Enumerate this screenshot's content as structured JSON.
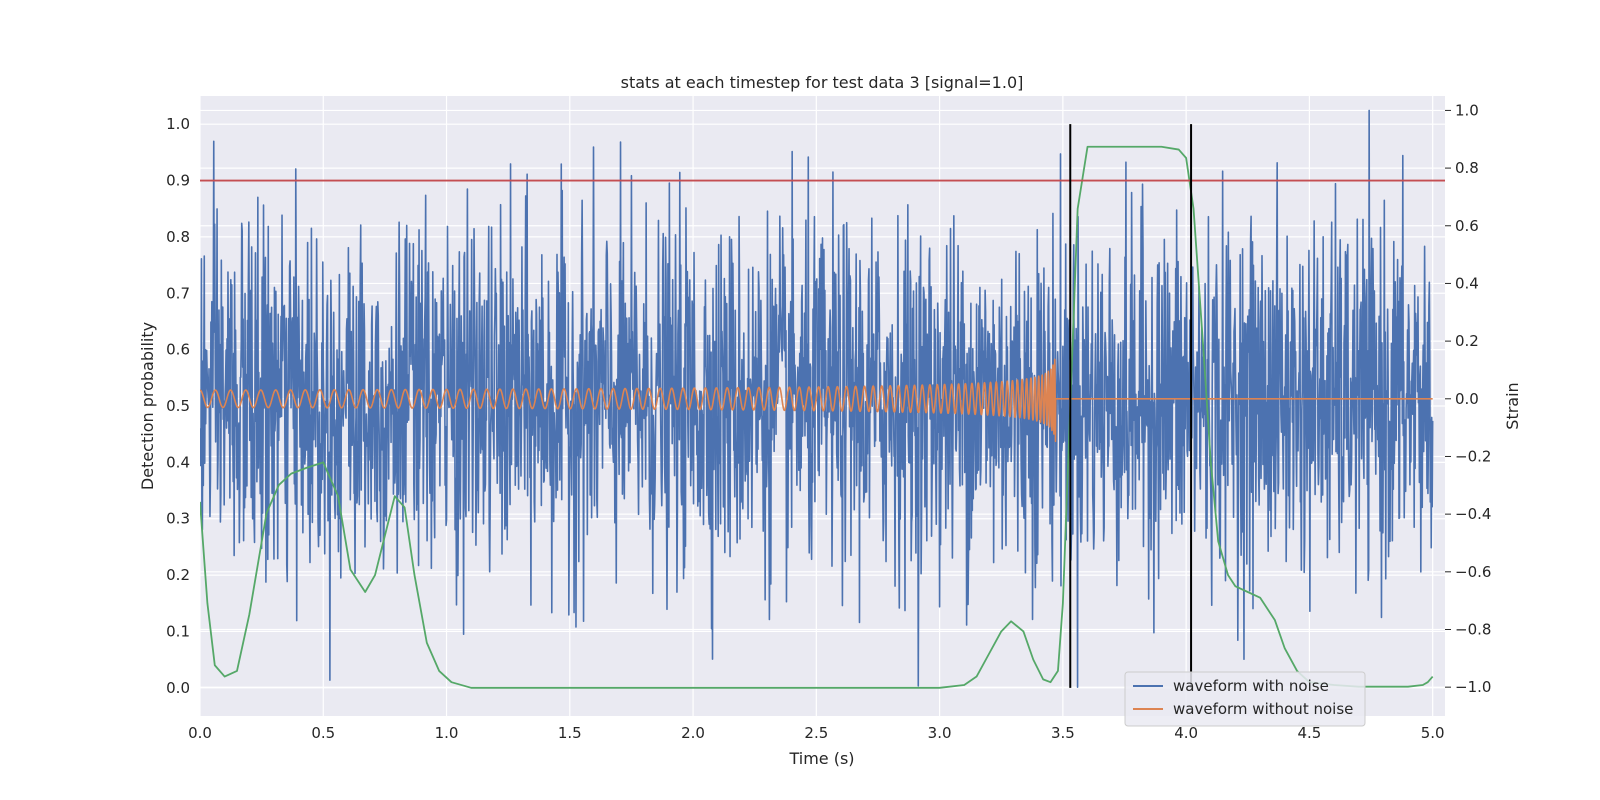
{
  "chart_data": {
    "type": "line",
    "title": "stats at each timestep for test data 3 [signal=1.0]",
    "xlabel": "Time (s)",
    "ylabel": "Detection probability",
    "ylabel_right": "Strain",
    "xlim": [
      0.0,
      5.05
    ],
    "ylim": [
      -0.05,
      1.05
    ],
    "ylim_right": [
      -1.1,
      1.05
    ],
    "x_ticks": [
      "0.0",
      "0.5",
      "1.0",
      "1.5",
      "2.0",
      "2.5",
      "3.0",
      "3.5",
      "4.0",
      "4.5",
      "5.0"
    ],
    "y_ticks": [
      "0.0",
      "0.1",
      "0.2",
      "0.3",
      "0.4",
      "0.5",
      "0.6",
      "0.7",
      "0.8",
      "0.9",
      "1.0"
    ],
    "y_ticks_right": [
      "−1.0",
      "−0.8",
      "−0.6",
      "−0.4",
      "−0.2",
      "0.0",
      "0.2",
      "0.4",
      "0.6",
      "0.8",
      "1.0"
    ],
    "grid": true,
    "legend_placement": "lower-right",
    "threshold": 0.9,
    "vlines": [
      3.53,
      4.02
    ],
    "vline_range": [
      0.0,
      1.0
    ],
    "series": [
      {
        "name": "waveform with noise",
        "axis": "right",
        "color": "#4c72b0",
        "amplitude_range": [
          -1.0,
          1.0
        ],
        "duration": 5.0
      },
      {
        "name": "waveform without noise",
        "axis": "right",
        "color": "#dd8452",
        "chirp_end": 3.47,
        "amplitude_start": 0.03,
        "amplitude_peak": 0.15,
        "duration": 5.0
      },
      {
        "axis": "left",
        "color": "#55a868",
        "x": [
          0.0,
          0.03,
          0.06,
          0.1,
          0.15,
          0.2,
          0.27,
          0.32,
          0.37,
          0.43,
          0.5,
          0.56,
          0.61,
          0.67,
          0.71,
          0.75,
          0.79,
          0.83,
          0.87,
          0.92,
          0.97,
          1.02,
          1.1,
          1.5,
          2.0,
          2.5,
          3.0,
          3.1,
          3.15,
          3.2,
          3.25,
          3.29,
          3.34,
          3.38,
          3.42,
          3.45,
          3.48,
          3.5,
          3.53,
          3.56,
          3.6,
          3.7,
          3.9,
          3.97,
          4.0,
          4.03,
          4.07,
          4.1,
          4.13,
          4.17,
          4.2,
          4.25,
          4.3,
          4.36,
          4.4,
          4.45,
          4.5,
          4.6,
          4.7,
          4.8,
          4.9,
          4.96,
          4.98,
          5.0
        ],
        "values": [
          0.33,
          0.15,
          0.04,
          0.02,
          0.03,
          0.13,
          0.31,
          0.36,
          0.38,
          0.39,
          0.4,
          0.34,
          0.21,
          0.17,
          0.2,
          0.27,
          0.34,
          0.32,
          0.2,
          0.08,
          0.03,
          0.01,
          0.0,
          0.0,
          0.0,
          0.0,
          0.0,
          0.005,
          0.02,
          0.06,
          0.1,
          0.118,
          0.1,
          0.05,
          0.015,
          0.01,
          0.03,
          0.15,
          0.5,
          0.85,
          0.96,
          0.96,
          0.96,
          0.955,
          0.94,
          0.85,
          0.6,
          0.4,
          0.26,
          0.2,
          0.18,
          0.17,
          0.16,
          0.12,
          0.07,
          0.03,
          0.01,
          0.005,
          0.002,
          0.002,
          0.002,
          0.005,
          0.01,
          0.02
        ]
      },
      {
        "axis": "left",
        "color": "#c44e52"
      }
    ]
  }
}
